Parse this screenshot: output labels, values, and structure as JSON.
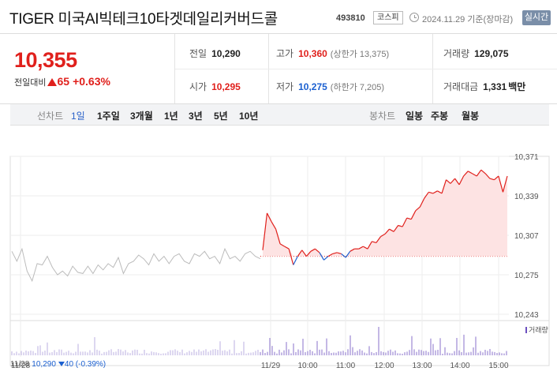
{
  "header": {
    "stock_name": "TIGER 미국AI빅테크10타겟데일리커버드콜",
    "stock_code": "493810",
    "market": "코스피",
    "timestamp": "2024.11.29 기준(장마감)",
    "realtime_label": "실시간"
  },
  "quote": {
    "price": "10,355",
    "change_label": "전일대비",
    "change": "65",
    "change_rate": "+0.63%",
    "prev_close_label": "전일",
    "prev_close": "10,290",
    "high_label": "고가",
    "high": "10,360",
    "upper_limit": "(상한가 13,375)",
    "volume_label": "거래량",
    "volume": "129,075",
    "open_label": "시가",
    "open": "10,295",
    "low_label": "저가",
    "low": "10,275",
    "lower_limit": "(하한가 7,205)",
    "amount_label": "거래대금",
    "amount": "1,331",
    "amount_unit": "백만"
  },
  "toolbar": {
    "line_label": "선차트",
    "line_tabs": [
      "1일",
      "1주일",
      "3개월",
      "1년",
      "3년",
      "5년",
      "10년"
    ],
    "active_tab": "1일",
    "candle_label": "봉차트",
    "candle_tabs": [
      "일봉",
      "주봉",
      "월봉"
    ]
  },
  "chart_data": {
    "type": "line",
    "y_ticks": [
      "10,371",
      "10,339",
      "10,307",
      "10,275",
      "10,243"
    ],
    "ylim": [
      10243,
      10371
    ],
    "x_ticks": [
      "11/28",
      "11/29",
      "10:00",
      "11:00",
      "12:00",
      "13:00",
      "14:00",
      "15:00"
    ],
    "reference_price": 10290,
    "volume_label": "거래량",
    "colors": {
      "up": "#e0201c",
      "down": "#1a5fd0",
      "prev_day": "#bbbbbb",
      "volume": "#6b4fbf",
      "up_fill": "#fde3e3"
    },
    "prev_day_series": [
      10294,
      10286,
      10296,
      10278,
      10270,
      10284,
      10283,
      10290,
      10281,
      10275,
      10278,
      10274,
      10282,
      10277,
      10276,
      10282,
      10276,
      10283,
      10279,
      10284,
      10281,
      10289,
      10276,
      10284,
      10286,
      10291,
      10288,
      10283,
      10292,
      10286,
      10290,
      10284,
      10290,
      10292,
      10286,
      10284,
      10292,
      10290,
      10294,
      10288,
      10290,
      10284,
      10296,
      10288,
      10290,
      10286,
      10292,
      10294,
      10290,
      10288
    ],
    "today_series": [
      10295,
      10325,
      10318,
      10312,
      10300,
      10298,
      10296,
      10283,
      10290,
      10295,
      10290,
      10294,
      10296,
      10293,
      10287,
      10290,
      10292,
      10293,
      10292,
      10289,
      10294,
      10296,
      10296,
      10298,
      10296,
      10302,
      10301,
      10306,
      10308,
      10312,
      10310,
      10315,
      10314,
      10321,
      10320,
      10327,
      10330,
      10337,
      10342,
      10341,
      10343,
      10341,
      10352,
      10349,
      10353,
      10348,
      10355,
      10359,
      10357,
      10355,
      10360,
      10357,
      10353,
      10352,
      10355,
      10342,
      10355
    ],
    "prev_close_summary": {
      "date": "11/28",
      "close": "10,290",
      "change": "40",
      "rate": "(-0.39%)"
    }
  }
}
